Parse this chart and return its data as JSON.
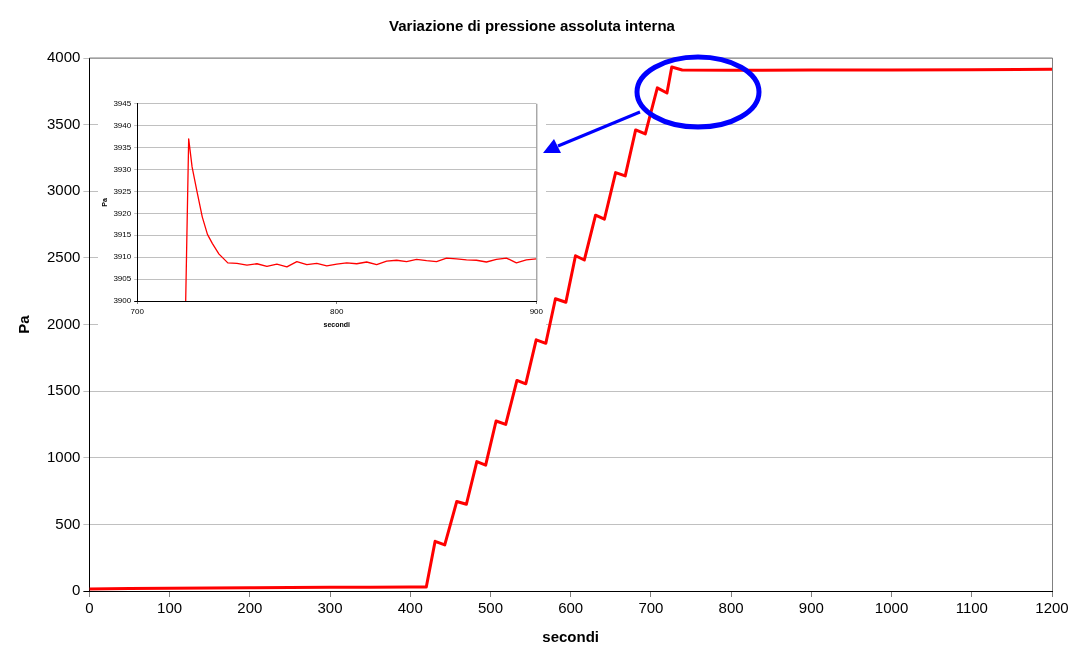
{
  "chart_data": [
    {
      "type": "line",
      "title": "Variazione di pressione assoluta interna",
      "xlabel": "secondi",
      "ylabel": "Pa",
      "xlim": [
        0,
        1200
      ],
      "xticks": [
        0,
        100,
        200,
        300,
        400,
        500,
        600,
        700,
        800,
        900,
        1000,
        1100,
        1200
      ],
      "ylim": [
        0,
        4000
      ],
      "yticks": [
        0,
        500,
        1000,
        1500,
        2000,
        2500,
        3000,
        3500,
        4000
      ],
      "grid": "y",
      "legend": false,
      "series": [
        {
          "color": "#ff0000",
          "x": [
            0,
            50,
            100,
            150,
            200,
            250,
            300,
            350,
            400,
            420,
            431,
            443,
            458,
            470,
            483,
            494,
            507,
            519,
            533,
            544,
            557,
            569,
            581,
            594,
            606,
            617,
            631,
            642,
            656,
            668,
            681,
            693,
            708,
            720,
            726,
            739,
            800,
            900,
            1000,
            1100,
            1200
          ],
          "values": [
            15,
            18,
            20,
            22,
            24,
            26,
            28,
            29,
            30,
            30,
            373,
            346,
            672,
            651,
            971,
            945,
            1276,
            1250,
            1580,
            1555,
            1885,
            1859,
            2193,
            2167,
            2516,
            2484,
            2820,
            2790,
            3140,
            3115,
            3460,
            3430,
            3776,
            3737,
            3932,
            3910,
            3908,
            3910,
            3910,
            3912,
            3915
          ]
        }
      ]
    },
    {
      "type": "line",
      "xlabel": "secondi",
      "ylabel": "Pa",
      "xlim": [
        700,
        900
      ],
      "xticks": [
        700,
        800,
        900
      ],
      "ylim": [
        3900,
        3945
      ],
      "yticks": [
        3900,
        3905,
        3910,
        3915,
        3920,
        3925,
        3930,
        3935,
        3940,
        3945
      ],
      "grid": "y",
      "legend": false,
      "series": [
        {
          "color": "#ff0000",
          "x": [
            724.3,
            725.8,
            727.5,
            730,
            732.6,
            735.2,
            737.7,
            741,
            745.4,
            750,
            755,
            760,
            765,
            770,
            775,
            780,
            785,
            790,
            795,
            800,
            805,
            810,
            815,
            820,
            825,
            830,
            835,
            840,
            845,
            850,
            855,
            860,
            865,
            870,
            875,
            880,
            885,
            890,
            895,
            900
          ],
          "values": [
            3900,
            3937,
            3930.6,
            3924.9,
            3919.2,
            3915.2,
            3913.1,
            3910.7,
            3908.7,
            3908.6,
            3908.2,
            3908.5,
            3907.9,
            3908.4,
            3907.8,
            3909.0,
            3908.3,
            3908.6,
            3908.0,
            3908.4,
            3908.7,
            3908.5,
            3908.9,
            3908.3,
            3909.1,
            3909.3,
            3909.0,
            3909.5,
            3909.2,
            3909.0,
            3909.8,
            3909.6,
            3909.4,
            3909.3,
            3908.9,
            3909.5,
            3909.8,
            3908.7,
            3909.4,
            3909.6
          ]
        }
      ]
    }
  ]
}
